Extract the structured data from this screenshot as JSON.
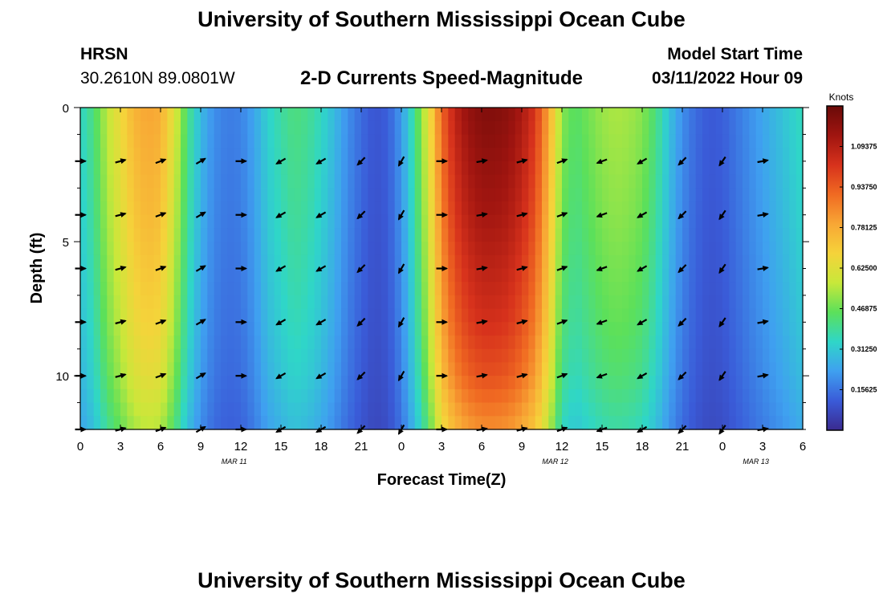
{
  "header": {
    "title": "University of Southern Mississippi Ocean Cube",
    "station": "HRSN",
    "coordinates": "30.2610N  89.0801W",
    "product": "2-D Currents Speed-Magnitude",
    "model_start_label": "Model Start Time",
    "model_start_value": "03/11/2022 Hour 09"
  },
  "footer": {
    "title": "University of Southern Mississippi Ocean Cube"
  },
  "chart_data": {
    "type": "heatmap",
    "title": "2-D Currents Speed-Magnitude",
    "xlabel": "Forecast Time(Z)",
    "ylabel": "Depth (ft)",
    "x_range_hours": [
      0,
      54
    ],
    "y_range_ft": [
      0,
      12
    ],
    "y_inverted": true,
    "x_tick_labels": [
      "0",
      "3",
      "6",
      "9",
      "12",
      "15",
      "18",
      "21",
      "0",
      "3",
      "6",
      "9",
      "12",
      "15",
      "18",
      "21",
      "0",
      "3",
      "6"
    ],
    "x_tick_hours": [
      0,
      3,
      6,
      9,
      12,
      15,
      18,
      21,
      24,
      27,
      30,
      33,
      36,
      39,
      42,
      45,
      48,
      51,
      54
    ],
    "date_labels": [
      {
        "text": "MAR 11",
        "hour": 11.5
      },
      {
        "text": "MAR 12",
        "hour": 35.5
      },
      {
        "text": "MAR 13",
        "hour": 50.5
      }
    ],
    "y_ticks": [
      0,
      5,
      10
    ],
    "colorbar": {
      "label": "Knots",
      "min": 0.0,
      "max": 1.25,
      "tick_values": [
        0.15625,
        0.3125,
        0.46875,
        0.625,
        0.78125,
        0.9375,
        1.09375
      ],
      "tick_labels": [
        "0.15625",
        "0.31250",
        "0.46875",
        "0.62500",
        "0.78125",
        "0.93750",
        "1.09375"
      ],
      "colors": [
        "#3a2a8f",
        "#3a5bd8",
        "#3fa0f0",
        "#2fd6c8",
        "#5ce05a",
        "#c8e83a",
        "#f5d33a",
        "#f8a735",
        "#f06a22",
        "#d7321c",
        "#a01510",
        "#6a0a08"
      ]
    },
    "surface_speed_profile": {
      "hours": [
        0,
        1,
        2,
        3,
        4,
        5,
        6,
        7,
        8,
        9,
        10,
        11,
        12,
        13,
        14,
        15,
        16,
        17,
        18,
        19,
        20,
        21,
        22,
        23,
        24,
        25,
        26,
        27,
        28,
        29,
        30,
        31,
        32,
        33,
        34,
        35,
        36,
        37,
        38,
        39,
        40,
        41,
        42,
        43,
        44,
        45,
        46,
        47,
        48,
        49,
        50,
        51,
        52,
        53,
        54
      ],
      "knots": [
        0.34,
        0.42,
        0.56,
        0.66,
        0.76,
        0.8,
        0.78,
        0.62,
        0.42,
        0.28,
        0.2,
        0.17,
        0.18,
        0.24,
        0.33,
        0.38,
        0.42,
        0.4,
        0.35,
        0.28,
        0.2,
        0.14,
        0.1,
        0.12,
        0.22,
        0.4,
        0.62,
        0.92,
        1.08,
        1.16,
        1.2,
        1.2,
        1.18,
        1.12,
        1.02,
        0.8,
        0.5,
        0.44,
        0.48,
        0.52,
        0.54,
        0.53,
        0.5,
        0.42,
        0.3,
        0.2,
        0.14,
        0.11,
        0.12,
        0.16,
        0.2,
        0.24,
        0.28,
        0.32,
        0.36
      ]
    },
    "depth_factor": {
      "depths_ft": [
        0,
        2,
        4,
        6,
        8,
        10,
        12
      ],
      "factor": [
        1.0,
        0.97,
        0.94,
        0.9,
        0.86,
        0.8,
        0.7
      ]
    },
    "current_vectors": {
      "hours": [
        0,
        3,
        6,
        9,
        12,
        15,
        18,
        21,
        24,
        27,
        30,
        33,
        36,
        39,
        42,
        45,
        48,
        51
      ],
      "direction_deg": [
        90,
        75,
        70,
        60,
        90,
        240,
        240,
        225,
        210,
        90,
        80,
        75,
        70,
        250,
        240,
        225,
        215,
        80
      ],
      "depths_ft": [
        2,
        4,
        6,
        8,
        10,
        12
      ]
    }
  }
}
